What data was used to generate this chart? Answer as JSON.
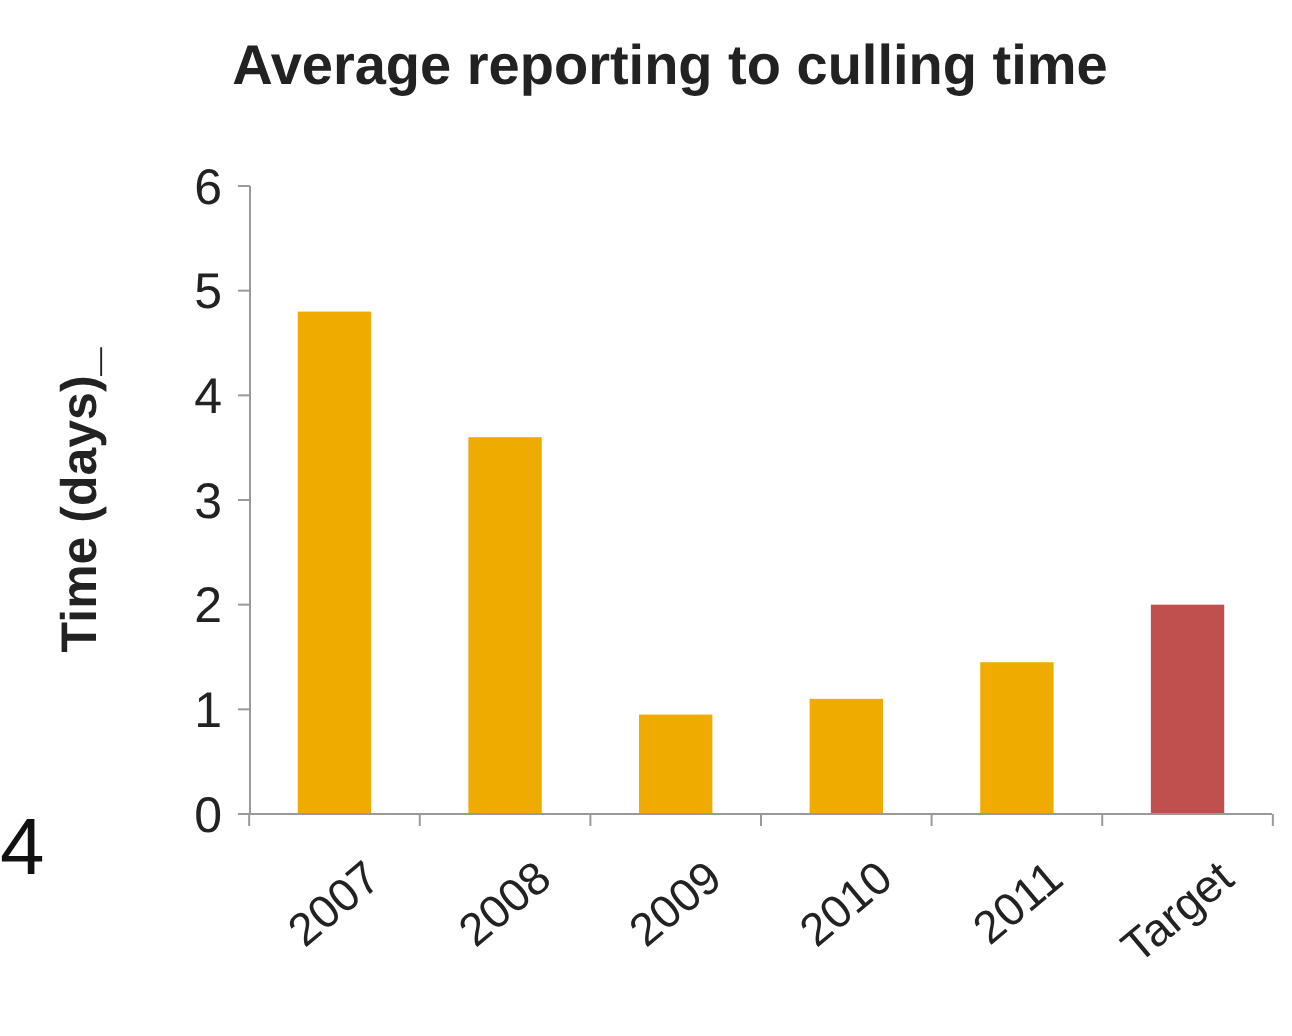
{
  "chart_data": {
    "type": "bar",
    "title": "Average reporting to culling time",
    "ylabel": "Time (days)_",
    "categories": [
      "2007",
      "2008",
      "2009",
      "2010",
      "2011",
      "Target"
    ],
    "values": [
      4.8,
      3.6,
      0.95,
      1.1,
      1.45,
      2.0
    ],
    "colors": [
      "#f0ab00",
      "#f0ab00",
      "#f0ab00",
      "#f0ab00",
      "#f0ab00",
      "#c0504d"
    ],
    "ylim": [
      0,
      6
    ],
    "yticks": [
      0,
      1,
      2,
      3,
      4,
      5,
      6
    ],
    "annotations": [
      "4"
    ]
  }
}
